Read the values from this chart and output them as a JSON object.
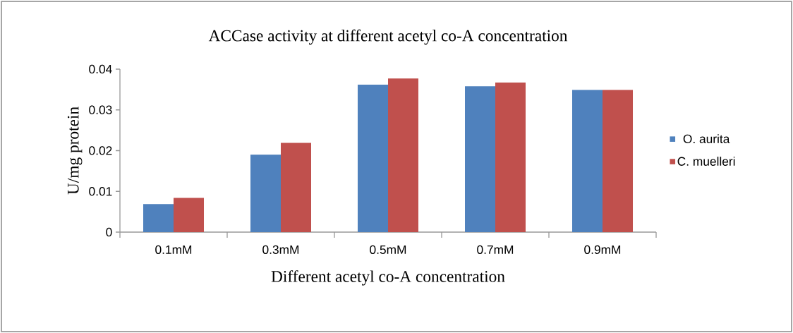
{
  "chart_data": {
    "type": "bar",
    "title": "ACCase activity at different acetyl co-A concentration",
    "xlabel": "Different acetyl co-A concentration",
    "ylabel": "U/mg protein",
    "categories": [
      "0.1mM",
      "0.3mM",
      "0.5mM",
      "0.7mM",
      "0.9mM"
    ],
    "series": [
      {
        "name": "O. aurita",
        "color": "#4f81bd",
        "values": [
          0.0069,
          0.019,
          0.0362,
          0.0358,
          0.0349
        ]
      },
      {
        "name": "C. muelleri",
        "color": "#c0504d",
        "values": [
          0.0084,
          0.0219,
          0.0377,
          0.0367,
          0.0349
        ]
      }
    ],
    "ylim": [
      0,
      0.04
    ],
    "yticks": [
      0,
      0.01,
      0.02,
      0.03,
      0.04
    ],
    "grid": false,
    "legend": "right"
  }
}
